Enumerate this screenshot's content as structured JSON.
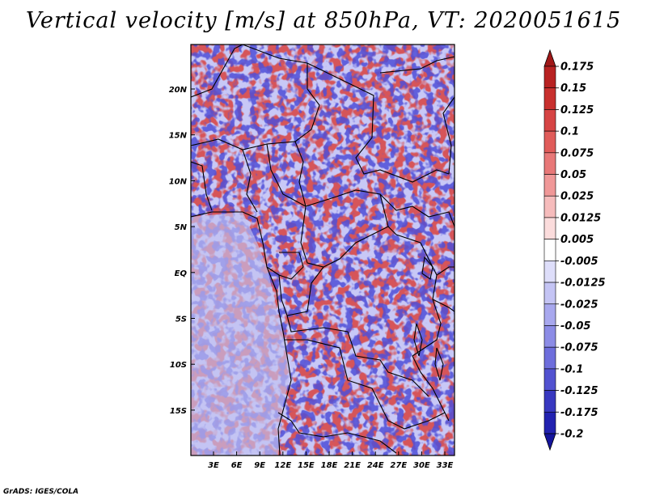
{
  "title": "Vertical velocity [m/s] at 850hPa, VT: 2020051615",
  "credit": "GrADS: IGES/COLA",
  "map": {
    "lon_labels": [
      "3E",
      "6E",
      "9E",
      "12E",
      "15E",
      "18E",
      "21E",
      "24E",
      "27E",
      "30E",
      "33E"
    ],
    "lat_labels": [
      "20N",
      "15N",
      "10N",
      "5N",
      "EQ",
      "5S",
      "10S",
      "15S"
    ]
  },
  "colorbar": {
    "labels": [
      "0.175",
      "0.15",
      "0.125",
      "0.1",
      "0.075",
      "0.05",
      "0.025",
      "0.0125",
      "0.005",
      "-0.005",
      "-0.0125",
      "-0.025",
      "-0.05",
      "-0.075",
      "-0.1",
      "-0.125",
      "-0.175",
      "-0.2"
    ],
    "colors": [
      "#a01818",
      "#b82222",
      "#c8302e",
      "#d64444",
      "#e05c5a",
      "#e87878",
      "#f09898",
      "#f6bcbc",
      "#fbdcdc",
      "#ffffff",
      "#dedefa",
      "#c4c4f4",
      "#a8a8ee",
      "#8c8ce6",
      "#6e6edc",
      "#5252d0",
      "#3838c0",
      "#2222b0",
      "#14149c"
    ]
  },
  "colors": {
    "positive": "#d04040",
    "negative": "#5a5ae0",
    "ocean": "#b8b8f0"
  }
}
